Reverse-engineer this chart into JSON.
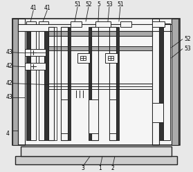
{
  "fig_width": 2.79,
  "fig_height": 2.49,
  "dpi": 100,
  "bg_color": "#e8e8e8",
  "lc": "#444444",
  "dc": "#222222",
  "gray_fill": "#aaaaaa",
  "dark_fill": "#333333",
  "white_fill": "#f5f5f5"
}
